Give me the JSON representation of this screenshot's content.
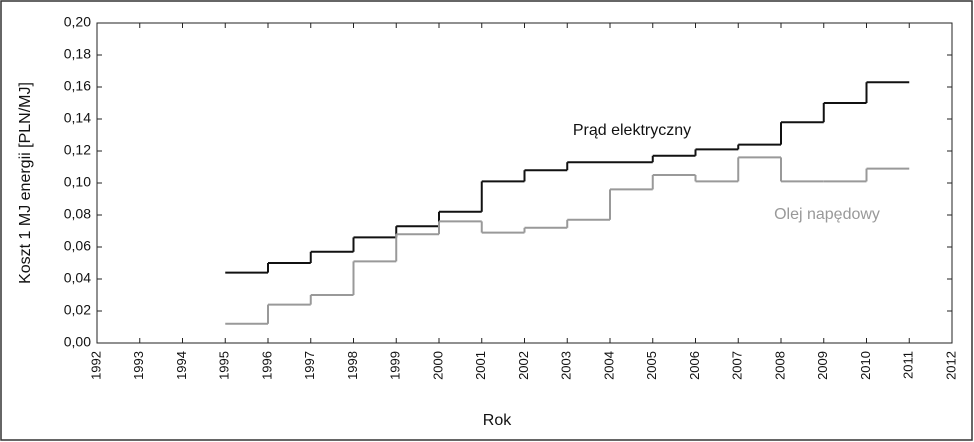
{
  "chart_data": {
    "type": "step",
    "x_label": "Rok",
    "y_label": "Koszt 1 MJ energii [PLN/MJ]",
    "x": [
      1995,
      1996,
      1997,
      1998,
      1999,
      2000,
      2001,
      2002,
      2003,
      2004,
      2005,
      2006,
      2007,
      2008,
      2009,
      2010
    ],
    "series": [
      {
        "name": "Prąd elektryczny",
        "color": "#111111",
        "values": [
          0.044,
          0.05,
          0.057,
          0.066,
          0.073,
          0.082,
          0.101,
          0.108,
          0.113,
          0.113,
          0.117,
          0.121,
          0.124,
          0.138,
          0.15,
          0.163
        ]
      },
      {
        "name": "Olej napędowy",
        "color": "#999999",
        "values": [
          0.012,
          0.024,
          0.03,
          0.051,
          0.068,
          0.076,
          0.069,
          0.072,
          0.077,
          0.096,
          0.105,
          0.101,
          0.116,
          0.101,
          0.101,
          0.109
        ]
      }
    ],
    "xlim": [
      1992,
      2012
    ],
    "xticks": [
      1992,
      1993,
      1994,
      1995,
      1996,
      1997,
      1998,
      1999,
      2000,
      2001,
      2002,
      2003,
      2004,
      2005,
      2006,
      2007,
      2008,
      2009,
      2010,
      2011,
      2012
    ],
    "ylim": [
      0,
      0.2
    ],
    "yticks": [
      {
        "value": 0,
        "label": "0,00"
      },
      {
        "value": 0.02,
        "label": "0,02"
      },
      {
        "value": 0.04,
        "label": "0,04"
      },
      {
        "value": 0.06,
        "label": "0,06"
      },
      {
        "value": 0.08,
        "label": "0,08"
      },
      {
        "value": 0.1,
        "label": "0,10"
      },
      {
        "value": 0.12,
        "label": "0,12"
      },
      {
        "value": 0.14,
        "label": "0,14"
      },
      {
        "value": 0.16,
        "label": "0,16"
      },
      {
        "value": 0.18,
        "label": "0,18"
      },
      {
        "value": 0.2,
        "label": "0,20"
      }
    ]
  }
}
